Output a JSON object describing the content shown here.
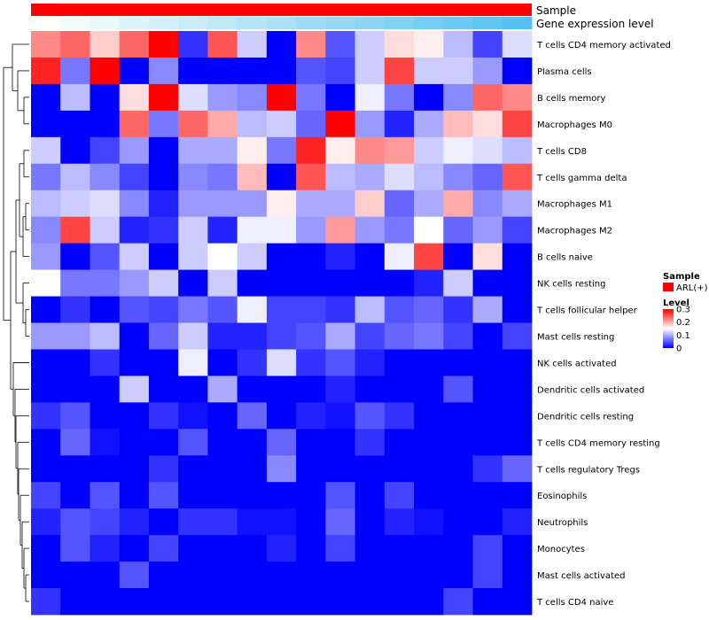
{
  "chart_data": {
    "type": "heatmap",
    "annotation_rows": [
      "Sample",
      "Gene expression level"
    ],
    "rows": [
      "T cells CD4 memory activated",
      "Plasma cells",
      "B cells memory",
      "Macrophages M0",
      "T cells CD8",
      "T cells gamma delta",
      "Macrophages M1",
      "Macrophages M2",
      "B cells naive",
      "NK cells resting",
      "T cells follicular helper",
      "Mast cells resting",
      "NK cells activated",
      "Dendritic cells activated",
      "Dendritic cells resting",
      "T cells CD4 memory resting",
      "T cells regulatory  Tregs",
      "Eosinophils",
      "Neutrophils",
      "Monocytes",
      "Mast cells activated",
      "T cells CD4 naive"
    ],
    "values": [
      [
        0.22,
        0.24,
        0.18,
        0.24,
        0.3,
        0.03,
        0.25,
        0.12,
        0.0,
        0.22,
        0.05,
        0.12,
        0.17,
        0.16,
        0.11,
        0.04,
        0.13
      ],
      [
        0.28,
        0.07,
        0.3,
        0.0,
        0.08,
        0.0,
        0.0,
        0.0,
        0.0,
        0.05,
        0.04,
        0.12,
        0.26,
        0.12,
        0.12,
        0.09,
        0.0
      ],
      [
        0.0,
        0.11,
        0.0,
        0.17,
        0.3,
        0.13,
        0.09,
        0.08,
        0.3,
        0.07,
        0.0,
        0.14,
        0.07,
        0.0,
        0.08,
        0.24,
        0.22
      ],
      [
        0.0,
        0.0,
        0.0,
        0.24,
        0.07,
        0.24,
        0.2,
        0.11,
        0.12,
        0.06,
        0.3,
        0.09,
        0.02,
        0.1,
        0.19,
        0.17,
        0.26
      ],
      [
        0.12,
        0.0,
        0.04,
        0.09,
        0.0,
        0.1,
        0.1,
        0.16,
        0.07,
        0.28,
        0.16,
        0.22,
        0.21,
        0.12,
        0.14,
        0.13,
        0.11
      ],
      [
        0.07,
        0.11,
        0.08,
        0.04,
        0.0,
        0.08,
        0.07,
        0.19,
        0.0,
        0.25,
        0.11,
        0.1,
        0.13,
        0.11,
        0.08,
        0.06,
        0.25
      ],
      [
        0.11,
        0.12,
        0.13,
        0.08,
        0.02,
        0.09,
        0.09,
        0.09,
        0.16,
        0.1,
        0.1,
        0.18,
        0.06,
        0.1,
        0.2,
        0.08,
        0.1
      ],
      [
        0.08,
        0.26,
        0.12,
        0.02,
        0.03,
        0.12,
        0.02,
        0.14,
        0.14,
        0.09,
        0.21,
        0.09,
        0.07,
        0.15,
        0.06,
        0.09,
        0.04
      ],
      [
        0.09,
        0.0,
        0.05,
        0.12,
        0.0,
        0.12,
        0.15,
        0.12,
        0.0,
        0.0,
        0.02,
        0.0,
        0.14,
        0.26,
        0.0,
        0.17,
        0.0
      ],
      [
        0.15,
        0.07,
        0.07,
        0.09,
        0.12,
        0.0,
        0.12,
        0.0,
        0.0,
        0.0,
        0.0,
        0.0,
        0.0,
        0.02,
        0.12,
        0.0,
        0.0
      ],
      [
        0.0,
        0.03,
        0.0,
        0.05,
        0.04,
        0.07,
        0.05,
        0.14,
        0.04,
        0.04,
        0.03,
        0.11,
        0.05,
        0.06,
        0.03,
        0.1,
        0.0
      ],
      [
        0.09,
        0.09,
        0.11,
        0.0,
        0.06,
        0.12,
        0.02,
        0.02,
        0.04,
        0.05,
        0.1,
        0.04,
        0.06,
        0.07,
        0.04,
        0.0,
        0.04
      ],
      [
        0.0,
        0.0,
        0.03,
        0.0,
        0.0,
        0.14,
        0.0,
        0.03,
        0.13,
        0.03,
        0.05,
        0.02,
        0.0,
        0.0,
        0.0,
        0.0,
        0.0
      ],
      [
        0.0,
        0.0,
        0.0,
        0.12,
        0.0,
        0.0,
        0.1,
        0.0,
        0.0,
        0.0,
        0.02,
        0.0,
        0.0,
        0.0,
        0.05,
        0.0,
        0.0
      ],
      [
        0.03,
        0.05,
        0.0,
        0.0,
        0.03,
        0.01,
        0.0,
        0.06,
        0.0,
        0.02,
        0.01,
        0.05,
        0.03,
        0.0,
        0.0,
        0.0,
        0.0
      ],
      [
        0.0,
        0.06,
        0.01,
        0.0,
        0.0,
        0.05,
        0.0,
        0.0,
        0.06,
        0.0,
        0.0,
        0.03,
        0.0,
        0.0,
        0.0,
        0.0,
        0.0
      ],
      [
        0.0,
        0.0,
        0.0,
        0.0,
        0.03,
        0.0,
        0.0,
        0.0,
        0.08,
        0.0,
        0.0,
        0.0,
        0.0,
        0.0,
        0.0,
        0.03,
        0.06
      ],
      [
        0.04,
        0.0,
        0.05,
        0.0,
        0.05,
        0.0,
        0.0,
        0.0,
        0.0,
        0.0,
        0.05,
        0.0,
        0.04,
        0.0,
        0.0,
        0.0,
        0.0
      ],
      [
        0.02,
        0.05,
        0.04,
        0.02,
        0.0,
        0.03,
        0.03,
        0.01,
        0.01,
        0.0,
        0.06,
        0.0,
        0.02,
        0.01,
        0.0,
        0.0,
        0.02
      ],
      [
        0.0,
        0.05,
        0.02,
        0.0,
        0.04,
        0.0,
        0.0,
        0.0,
        0.02,
        0.0,
        0.04,
        0.0,
        0.0,
        0.0,
        0.0,
        0.04,
        0.0
      ],
      [
        0.0,
        0.0,
        0.0,
        0.05,
        0.0,
        0.0,
        0.0,
        0.0,
        0.0,
        0.0,
        0.0,
        0.0,
        0.0,
        0.0,
        0.0,
        0.04,
        0.0
      ],
      [
        0.03,
        0.0,
        0.0,
        0.0,
        0.0,
        0.0,
        0.0,
        0.0,
        0.0,
        0.0,
        0.0,
        0.0,
        0.0,
        0.0,
        0.04,
        0.0,
        0.0
      ]
    ],
    "range": [
      0,
      0.3
    ],
    "colors": {
      "low": "#0000ff",
      "mid": "#ffffff",
      "high": "#ff0000"
    },
    "sample_color": "#ff0000",
    "gene_expression_gradient": [
      "#ffffff",
      "#56c1f0"
    ],
    "legend": {
      "placement": "right",
      "sample_title": "Sample",
      "sample_entry": "ARL(+)",
      "level_title": "Level",
      "ticks": [
        "0.3",
        "0.2",
        "0.1",
        "0"
      ]
    },
    "dendrogram": "left"
  }
}
